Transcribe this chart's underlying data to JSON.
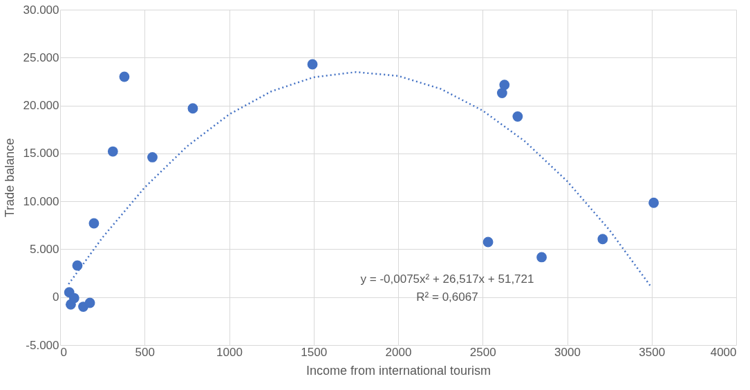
{
  "chart_data": {
    "type": "scatter",
    "xlabel": "Income from international tourism",
    "ylabel": "Trade balance",
    "xlim": [
      0,
      4000
    ],
    "xticks": [
      0,
      500,
      1000,
      1500,
      2000,
      2500,
      3000,
      3500,
      4000
    ],
    "ylim": [
      -5000,
      30000
    ],
    "yticks": [
      {
        "value": -5000,
        "label": "-5.000"
      },
      {
        "value": 0,
        "label": "0"
      },
      {
        "value": 5000,
        "label": "5.000"
      },
      {
        "value": 10000,
        "label": "10.000"
      },
      {
        "value": 15000,
        "label": "15.000"
      },
      {
        "value": 20000,
        "label": "20.000"
      },
      {
        "value": 25000,
        "label": "25.000"
      },
      {
        "value": 30000,
        "label": "30.000"
      }
    ],
    "grid": true,
    "series": [
      {
        "type": "scatter",
        "color": "#4472c4",
        "marker": "circle",
        "x": [
          54,
          63,
          83,
          137,
          176,
          102,
          200,
          312,
          380,
          546,
          785,
          1493,
          2615,
          2629,
          2707,
          2532,
          2849,
          3210,
          3512
        ],
        "values": [
          500,
          -760,
          -100,
          -1000,
          -600,
          3300,
          7700,
          15200,
          23000,
          14600,
          19700,
          24300,
          21300,
          22150,
          18850,
          5750,
          4170,
          6060,
          9850
        ]
      },
      {
        "type": "line",
        "color": "#4472c4",
        "line_style": "dotted",
        "marker": "none",
        "x": [
          50,
          250,
          500,
          750,
          1000,
          1250,
          1500,
          1750,
          2000,
          2250,
          2500,
          2750,
          3000,
          3250,
          3500
        ],
        "values": [
          1360,
          6210,
          11440,
          15720,
          19070,
          21480,
          22950,
          23490,
          23090,
          21750,
          19470,
          16260,
          12100,
          7010,
          990
        ]
      }
    ],
    "annotations": [
      "y = -0,0075x² + 26,517x + 51,721",
      "R² = 0,6067"
    ]
  }
}
